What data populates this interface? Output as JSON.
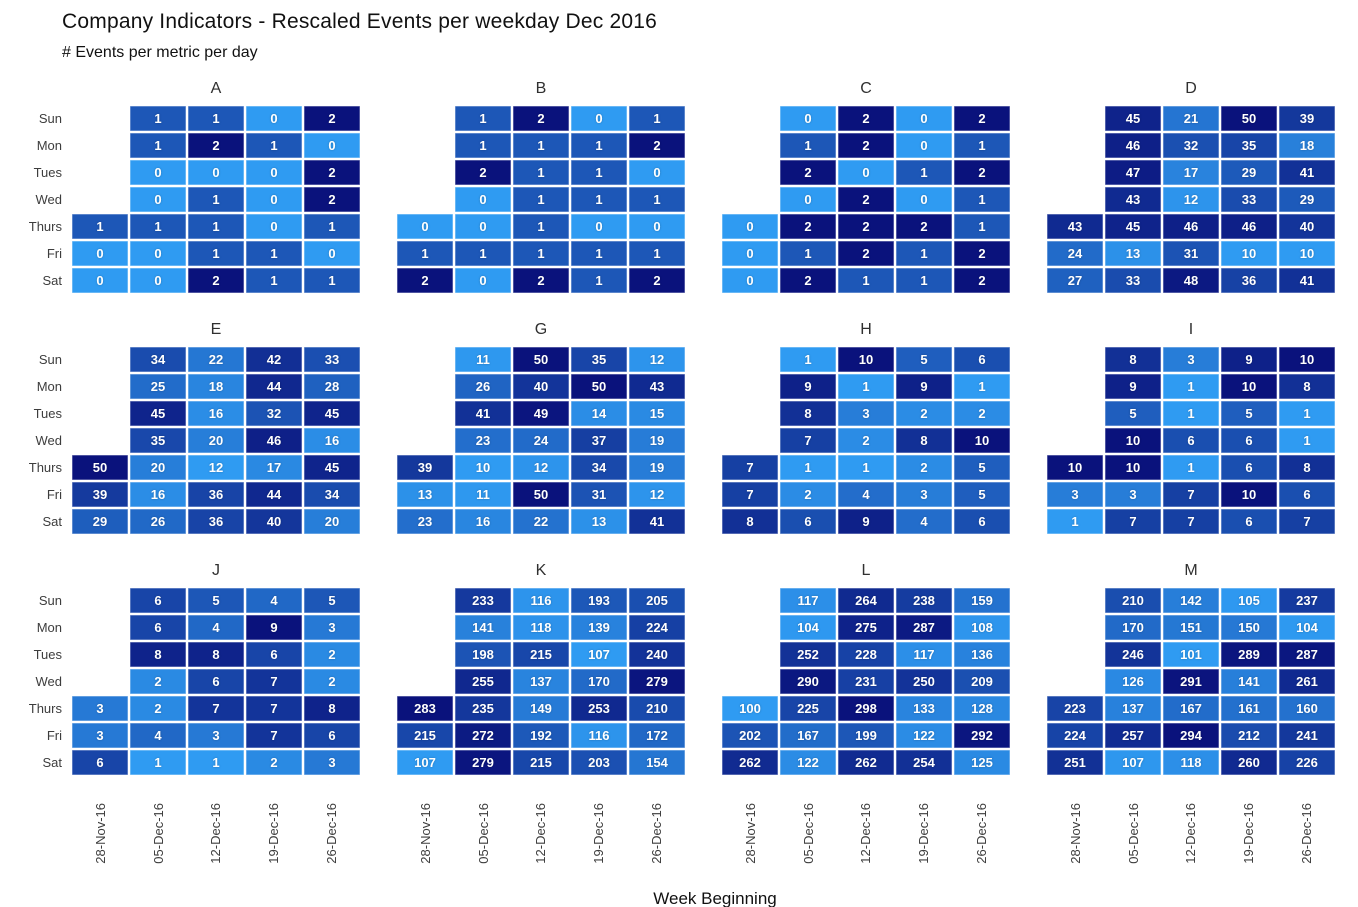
{
  "title": "Company Indicators - Rescaled Events per weekday Dec 2016",
  "subtitle": "# Events per metric per day",
  "x_axis_title": "Week Beginning",
  "weekdays": [
    "Sun",
    "Mon",
    "Tues",
    "Wed",
    "Thurs",
    "Fri",
    "Sat"
  ],
  "weeks": [
    "28-Nov-16",
    "05-Dec-16",
    "12-Dec-16",
    "19-Dec-16",
    "26-Dec-16"
  ],
  "colors": {
    "scale_low": "#2F9BF2",
    "scale_high": "#0A127C",
    "cell_text": "#FFFFFF"
  },
  "chart_data": {
    "type": "heatmap",
    "title": "Company Indicators - Rescaled Events per weekday Dec 2016",
    "subtitle": "# Events per metric per day",
    "xlabel": "Week Beginning",
    "x_categories": [
      "28-Nov-16",
      "05-Dec-16",
      "12-Dec-16",
      "19-Dec-16",
      "26-Dec-16"
    ],
    "y_categories": [
      "Sun",
      "Mon",
      "Tues",
      "Wed",
      "Thurs",
      "Fri",
      "Sat"
    ],
    "facet_layout": [
      [
        "A",
        "B",
        "C",
        "D"
      ],
      [
        "E",
        "G",
        "H",
        "I"
      ],
      [
        "J",
        "K",
        "L",
        "M"
      ]
    ],
    "colorscale_note": "color rescaled per facet from min (light blue) to max (dark navy)",
    "facets": [
      {
        "label": "A",
        "rows": [
          [
            null,
            1,
            1,
            0,
            2
          ],
          [
            null,
            1,
            2,
            1,
            0
          ],
          [
            null,
            0,
            0,
            0,
            2
          ],
          [
            null,
            0,
            1,
            0,
            2
          ],
          [
            1,
            1,
            1,
            0,
            1
          ],
          [
            0,
            0,
            1,
            1,
            0
          ],
          [
            0,
            0,
            2,
            1,
            1
          ]
        ]
      },
      {
        "label": "B",
        "rows": [
          [
            null,
            1,
            2,
            0,
            1
          ],
          [
            null,
            1,
            1,
            1,
            2
          ],
          [
            null,
            2,
            1,
            1,
            0
          ],
          [
            null,
            0,
            1,
            1,
            1
          ],
          [
            0,
            0,
            1,
            0,
            0
          ],
          [
            1,
            1,
            1,
            1,
            1
          ],
          [
            2,
            0,
            2,
            1,
            2
          ]
        ]
      },
      {
        "label": "C",
        "rows": [
          [
            null,
            0,
            2,
            0,
            2
          ],
          [
            null,
            1,
            2,
            0,
            1
          ],
          [
            null,
            2,
            0,
            1,
            2
          ],
          [
            null,
            0,
            2,
            0,
            1
          ],
          [
            0,
            2,
            2,
            2,
            1
          ],
          [
            0,
            1,
            2,
            1,
            2
          ],
          [
            0,
            2,
            1,
            1,
            2
          ]
        ]
      },
      {
        "label": "D",
        "rows": [
          [
            null,
            45,
            21,
            50,
            39
          ],
          [
            null,
            46,
            32,
            35,
            18
          ],
          [
            null,
            47,
            17,
            29,
            41
          ],
          [
            null,
            43,
            12,
            33,
            29
          ],
          [
            43,
            45,
            46,
            46,
            40
          ],
          [
            24,
            13,
            31,
            10,
            10
          ],
          [
            27,
            33,
            48,
            36,
            41
          ]
        ]
      },
      {
        "label": "E",
        "rows": [
          [
            null,
            34,
            22,
            42,
            33
          ],
          [
            null,
            25,
            18,
            44,
            28
          ],
          [
            null,
            45,
            16,
            32,
            45
          ],
          [
            null,
            35,
            20,
            46,
            16
          ],
          [
            50,
            20,
            12,
            17,
            45
          ],
          [
            39,
            16,
            36,
            44,
            34
          ],
          [
            29,
            26,
            36,
            40,
            20
          ]
        ]
      },
      {
        "label": "G",
        "rows": [
          [
            null,
            11,
            50,
            35,
            12
          ],
          [
            null,
            26,
            40,
            50,
            43
          ],
          [
            null,
            41,
            49,
            14,
            15
          ],
          [
            null,
            23,
            24,
            37,
            19
          ],
          [
            39,
            10,
            12,
            34,
            19
          ],
          [
            13,
            11,
            50,
            31,
            12
          ],
          [
            23,
            16,
            22,
            13,
            41
          ]
        ]
      },
      {
        "label": "H",
        "rows": [
          [
            null,
            1,
            10,
            5,
            6
          ],
          [
            null,
            9,
            1,
            9,
            1
          ],
          [
            null,
            8,
            3,
            2,
            2
          ],
          [
            null,
            7,
            2,
            8,
            10
          ],
          [
            7,
            1,
            1,
            2,
            5
          ],
          [
            7,
            2,
            4,
            3,
            5
          ],
          [
            8,
            6,
            9,
            4,
            6
          ]
        ]
      },
      {
        "label": "I",
        "rows": [
          [
            null,
            8,
            3,
            9,
            10
          ],
          [
            null,
            9,
            1,
            10,
            8
          ],
          [
            null,
            5,
            1,
            5,
            1
          ],
          [
            null,
            10,
            6,
            6,
            1
          ],
          [
            10,
            10,
            1,
            6,
            8
          ],
          [
            3,
            3,
            7,
            10,
            6
          ],
          [
            1,
            7,
            7,
            6,
            7
          ]
        ]
      },
      {
        "label": "J",
        "rows": [
          [
            null,
            6,
            5,
            4,
            5
          ],
          [
            null,
            6,
            4,
            9,
            3
          ],
          [
            null,
            8,
            8,
            6,
            2
          ],
          [
            null,
            2,
            6,
            7,
            2
          ],
          [
            3,
            2,
            7,
            7,
            8
          ],
          [
            3,
            4,
            3,
            7,
            6
          ],
          [
            6,
            1,
            1,
            2,
            3
          ]
        ]
      },
      {
        "label": "K",
        "rows": [
          [
            null,
            233,
            116,
            193,
            205
          ],
          [
            null,
            141,
            118,
            139,
            224
          ],
          [
            null,
            198,
            215,
            107,
            240
          ],
          [
            null,
            255,
            137,
            170,
            279
          ],
          [
            283,
            235,
            149,
            253,
            210
          ],
          [
            215,
            272,
            192,
            116,
            172
          ],
          [
            107,
            279,
            215,
            203,
            154
          ]
        ]
      },
      {
        "label": "L",
        "rows": [
          [
            null,
            117,
            264,
            238,
            159
          ],
          [
            null,
            104,
            275,
            287,
            108
          ],
          [
            null,
            252,
            228,
            117,
            136
          ],
          [
            null,
            290,
            231,
            250,
            209
          ],
          [
            100,
            225,
            298,
            133,
            128
          ],
          [
            202,
            167,
            199,
            122,
            292
          ],
          [
            262,
            122,
            262,
            254,
            125
          ]
        ]
      },
      {
        "label": "M",
        "rows": [
          [
            null,
            210,
            142,
            105,
            237
          ],
          [
            null,
            170,
            151,
            150,
            104
          ],
          [
            null,
            246,
            101,
            289,
            287
          ],
          [
            null,
            126,
            291,
            141,
            261
          ],
          [
            223,
            137,
            167,
            161,
            160
          ],
          [
            224,
            257,
            294,
            212,
            241
          ],
          [
            251,
            107,
            118,
            260,
            226
          ]
        ]
      }
    ]
  }
}
